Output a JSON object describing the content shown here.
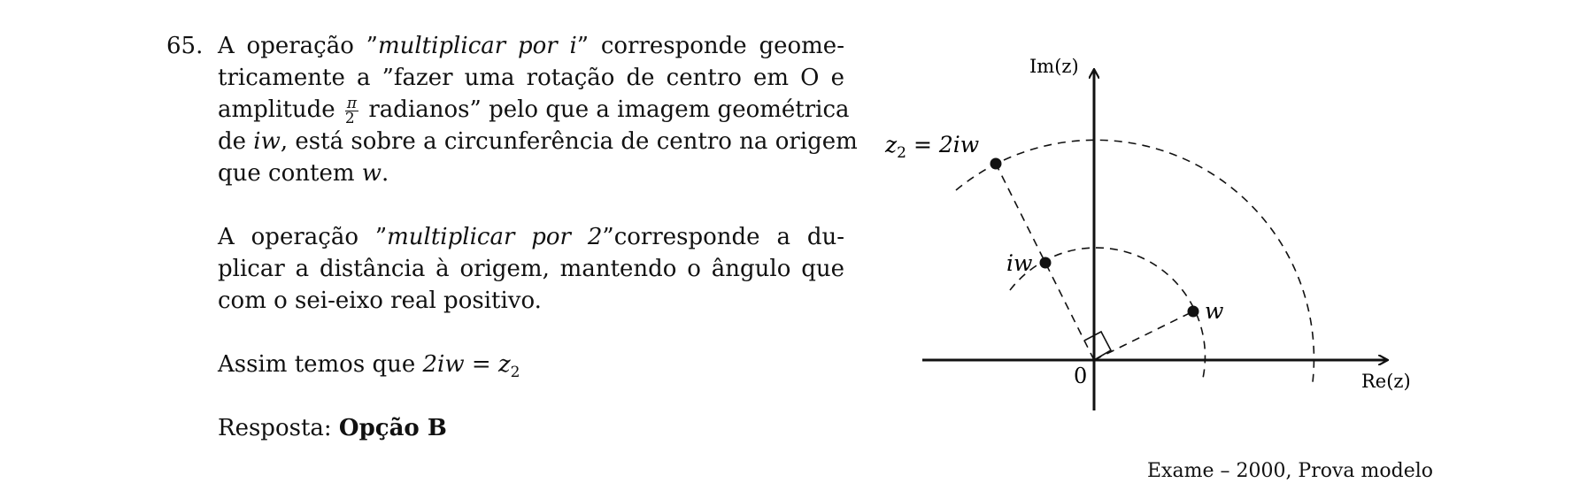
{
  "exercise": {
    "number": "65.",
    "p1": {
      "l1a": "A operação ”",
      "l1b": "multiplicar por i",
      "l1c": "” corresponde geome-",
      "l2": "tricamente a ”fazer uma rotação de centro em O e",
      "l3a": "amplitude",
      "frac_num": "π",
      "frac_den": "2",
      "l3b": "radianos” pelo que a imagem geométrica",
      "l4a": "de",
      "l4b": "iw",
      "l4c": ", está sobre a circunferência de centro na origem",
      "l5a": "que contem",
      "l5b": "w",
      "l5c": "."
    },
    "p2": {
      "l1a": "A operação ”",
      "l1b": "multiplicar por 2",
      "l1c": "”corresponde a du-",
      "l2": "plicar a distância à origem, mantendo o ângulo que",
      "l3": "com o sei-eixo real positivo."
    },
    "p3": {
      "prefix": "Assim temos que ",
      "eq_left": "2iw",
      "eq_sign": " = ",
      "eq_right": "z",
      "eq_sub": "2"
    },
    "answer": {
      "prefix": "Resposta: ",
      "value": "Opção B"
    }
  },
  "figure": {
    "y_axis_label": "Im(z)",
    "x_axis_label": "Re(z)",
    "origin_label": "0",
    "point_w": "w",
    "point_iw": "iw",
    "point_z2_main": "z",
    "point_z2_sub": "2",
    "point_z2_rest": " = 2iw"
  },
  "caption": "Exame – 2000, Prova modelo"
}
